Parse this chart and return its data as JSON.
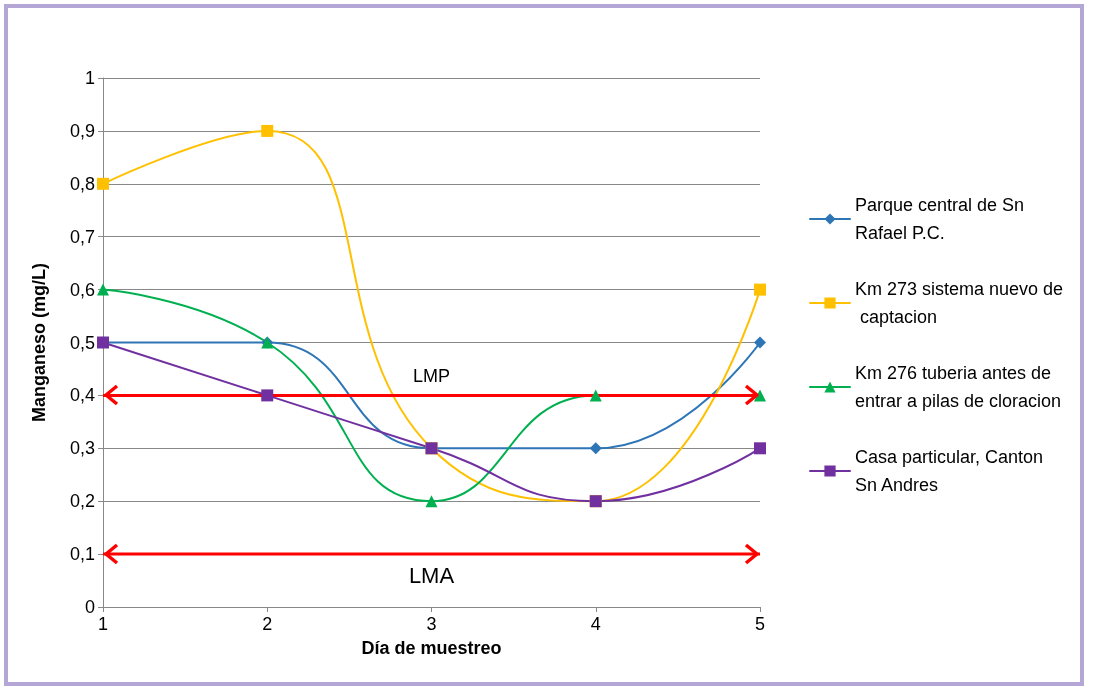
{
  "chart_data": {
    "type": "line",
    "xlabel": "Día de muestreo",
    "ylabel": "Manganeso (mg/L)",
    "categories": [
      "1",
      "2",
      "3",
      "4",
      "5"
    ],
    "ylim": [
      0,
      1
    ],
    "yticks": [
      {
        "value": 0,
        "label": "0"
      },
      {
        "value": 0.1,
        "label": "0,1"
      },
      {
        "value": 0.2,
        "label": "0,2"
      },
      {
        "value": 0.3,
        "label": "0,3"
      },
      {
        "value": 0.4,
        "label": "0,4"
      },
      {
        "value": 0.5,
        "label": "0,5"
      },
      {
        "value": 0.6,
        "label": "0,6"
      },
      {
        "value": 0.7,
        "label": "0,7"
      },
      {
        "value": 0.8,
        "label": "0,8"
      },
      {
        "value": 0.9,
        "label": "0,9"
      },
      {
        "value": 1,
        "label": "1"
      }
    ],
    "grid": "y",
    "legend": "right",
    "line_style": "solid",
    "series": [
      {
        "name": "Parque central de Sn Rafael P.C.",
        "color": "#2e75b6",
        "marker": "diamond",
        "values": [
          0.5,
          0.5,
          0.3,
          0.3,
          0.5
        ]
      },
      {
        "name": "Km 273 sistema nuevo de captacion",
        "color": "#ffc000",
        "marker": "square",
        "values": [
          0.8,
          0.9,
          0.3,
          0.2,
          0.6
        ]
      },
      {
        "name": "Km 276 tuberia antes de entrar a pilas de cloracion",
        "color": "#00b050",
        "marker": "triangle",
        "values": [
          0.6,
          0.5,
          0.2,
          0.4,
          0.4
        ]
      },
      {
        "name": "Casa particular, Canton Sn Andres",
        "color": "#7030a0",
        "marker": "square",
        "values": [
          0.5,
          0.4,
          0.3,
          0.2,
          0.3
        ]
      }
    ],
    "ref_lines": [
      {
        "axis": "y",
        "value": 0.4,
        "label": "LMP",
        "color": "#ff0000",
        "line_style": "solid"
      },
      {
        "axis": "y",
        "value": 0.1,
        "label": "LMA",
        "color": "#ff0000",
        "line_style": "solid"
      }
    ]
  }
}
